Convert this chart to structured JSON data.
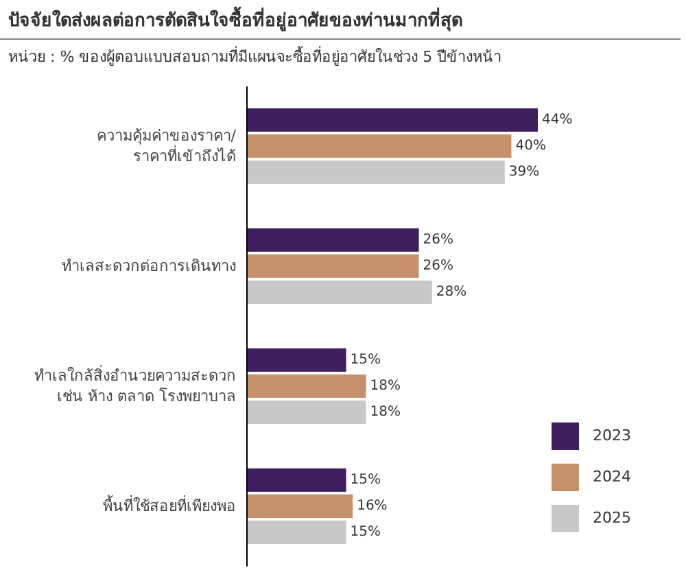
{
  "chart_data": {
    "type": "bar",
    "orientation": "horizontal",
    "title": "ปัจจัยใดส่งผลต่อการตัดสินใจซื้อที่อยู่อาศัยของท่านมากที่สุด",
    "subtitle": "หน่วย : % ของผู้ตอบแบบสอบถามที่มีแผนจะซื้อที่อยู่อาศัยในช่วง 5 ปีข้างหน้า",
    "categories": [
      "ความคุ้มค่าของราคา/\nราคาที่เข้าถึงได้",
      "ทำเลสะดวกต่อการเดินทาง",
      "ทำเลใกล้สิ่งอำนวยความสะดวก\nเช่น ห้าง ตลาด โรงพยาบาล",
      "พื้นที่ใช้สอยที่เพียงพอ"
    ],
    "series": [
      {
        "name": "2023",
        "color": "#3f1f5e",
        "values": [
          44,
          26,
          15,
          15
        ],
        "value_labels": [
          "44%",
          "26%",
          "15%",
          "15%"
        ]
      },
      {
        "name": "2024",
        "color": "#c4916a",
        "values": [
          40,
          26,
          18,
          16
        ],
        "value_labels": [
          "40%",
          "26%",
          "18%",
          "16%"
        ]
      },
      {
        "name": "2025",
        "color": "#c8c8c8",
        "values": [
          39,
          28,
          18,
          15
        ],
        "value_labels": [
          "39%",
          "28%",
          "18%",
          "15%"
        ]
      }
    ],
    "legend": "bottom right",
    "tick_labels": "y"
  }
}
